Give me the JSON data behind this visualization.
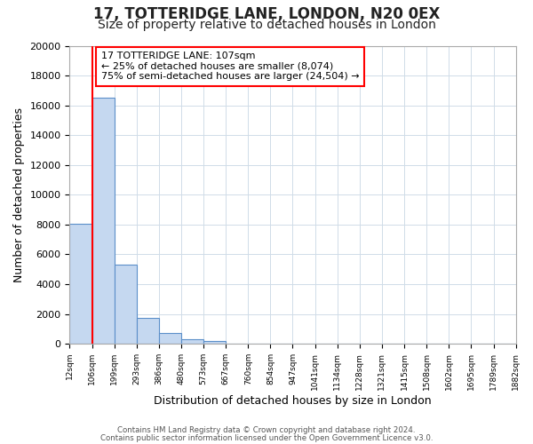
{
  "title": "17, TOTTERIDGE LANE, LONDON, N20 0EX",
  "subtitle": "Size of property relative to detached houses in London",
  "xlabel": "Distribution of detached houses by size in London",
  "ylabel": "Number of detached properties",
  "bar_edges": [
    12,
    106,
    199,
    293,
    386,
    480,
    573,
    667,
    760,
    854,
    947,
    1041,
    1134,
    1228,
    1321,
    1415,
    1508,
    1602,
    1695,
    1789,
    1882
  ],
  "bar_heights": [
    8074,
    16500,
    5300,
    1750,
    750,
    275,
    175,
    0,
    0,
    0,
    0,
    0,
    0,
    0,
    0,
    0,
    0,
    0,
    0,
    0
  ],
  "bar_color": "#c5d8f0",
  "bar_edge_color": "#5b8fc9",
  "red_line_x": 107,
  "ylim": [
    0,
    20000
  ],
  "yticks": [
    0,
    2000,
    4000,
    6000,
    8000,
    10000,
    12000,
    14000,
    16000,
    18000,
    20000
  ],
  "annotation_line1": "17 TOTTERIDGE LANE: 107sqm",
  "annotation_line2": "← 25% of detached houses are smaller (8,074)",
  "annotation_line3": "75% of semi-detached houses are larger (24,504) →",
  "footer_line1": "Contains HM Land Registry data © Crown copyright and database right 2024.",
  "footer_line2": "Contains public sector information licensed under the Open Government Licence v3.0.",
  "background_color": "#ffffff",
  "plot_bg_color": "#ffffff",
  "grid_color": "#d0dce8",
  "title_fontsize": 12,
  "subtitle_fontsize": 10
}
